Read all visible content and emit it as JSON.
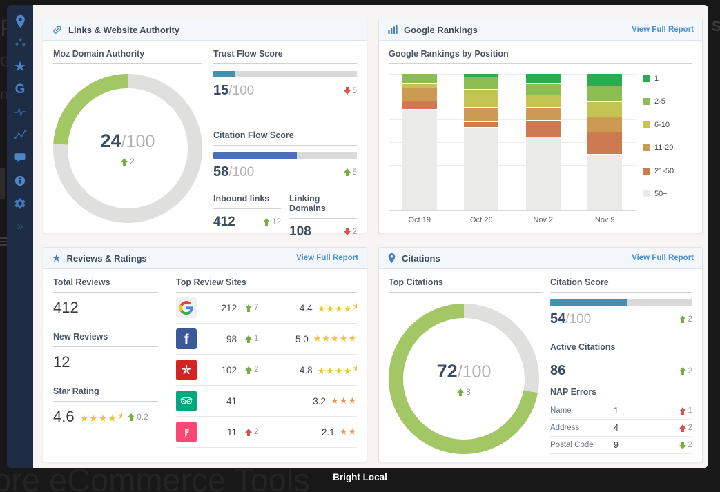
{
  "window": {
    "watermark_text": "ore eCommerce Tools",
    "caption": "Bright Local",
    "edge_fragments": {
      "left_1": "P",
      "left_2": "G",
      "left_3": "m",
      "right_1": "S"
    }
  },
  "sidebar": {
    "icons": [
      "location-pin",
      "pins-cluster",
      "star",
      "google-g",
      "pulse",
      "line-chart",
      "chat-bubble",
      "info",
      "gear",
      "collapse-chevrons"
    ]
  },
  "panels": {
    "links": {
      "title": "Links & Website Authority",
      "moz": {
        "label": "Moz Domain Authority",
        "donut": {
          "pct": 24,
          "fill": "#a3c764",
          "track": "#dfdfdd"
        },
        "score": "24",
        "max": "/100",
        "delta": {
          "dir": "up",
          "value": "2",
          "color": "#76b043"
        }
      },
      "trust": {
        "label": "Trust Flow Score",
        "score": "15",
        "max": "/100",
        "bar": {
          "value": 15,
          "color": "#4193ad",
          "track": "#d9d9d7"
        },
        "delta": {
          "dir": "down",
          "value": "5",
          "color": "#d9534f"
        }
      },
      "citation_flow": {
        "label": "Citation Flow Score",
        "score": "58",
        "max": "/100",
        "bar": {
          "value": 58,
          "color": "#4a70bd",
          "track": "#d9d9d7"
        },
        "delta": {
          "dir": "up",
          "value": "5",
          "color": "#76b043"
        }
      },
      "inbound": {
        "label": "Inbound links",
        "value": "412",
        "delta": {
          "dir": "up",
          "value": "12",
          "color": "#76b043"
        }
      },
      "linking": {
        "label": "Linking Domains",
        "value": "108",
        "delta": {
          "dir": "down",
          "value": "2",
          "color": "#d9534f"
        }
      }
    },
    "rankings": {
      "title": "Google Rankings",
      "link": "View Full Report",
      "subtitle": "Google Rankings by Position",
      "chart_data": {
        "type": "bar-stacked",
        "categories": [
          "Oct 19",
          "Oct 26",
          "Nov 2",
          "Nov 9"
        ],
        "series": [
          {
            "name": "1",
            "color": "#2faa50",
            "values": [
              0,
              2,
              7,
              9
            ]
          },
          {
            "name": "2-5",
            "color": "#8cbd52",
            "values": [
              7,
              9,
              8,
              11
            ]
          },
          {
            "name": "6-10",
            "color": "#c3c452",
            "values": [
              3,
              13,
              9,
              11
            ]
          },
          {
            "name": "11-20",
            "color": "#cc9a52",
            "values": [
              9,
              10,
              9,
              11
            ]
          },
          {
            "name": "21-50",
            "color": "#cd7a50",
            "values": [
              6,
              4,
              12,
              16
            ]
          },
          {
            "name": "50+",
            "color": "#eaeae8",
            "values": [
              75,
              62,
              55,
              42
            ]
          }
        ],
        "ylim": [
          0,
          100
        ],
        "grid": true,
        "legend_position": "right"
      }
    },
    "reviews": {
      "title": "Reviews & Ratings",
      "link": "View Full Report",
      "total": {
        "label": "Total Reviews",
        "value": "412"
      },
      "new": {
        "label": "New Reviews",
        "value": "12"
      },
      "star": {
        "label": "Star Rating",
        "value": "4.6",
        "stars": {
          "display": 4.5,
          "color": "#f2c13c"
        },
        "delta": {
          "dir": "up",
          "value": "0.2",
          "color": "#76b043"
        }
      },
      "sites_label": "Top Review Sites",
      "sites": [
        {
          "name": "Google",
          "count": "212",
          "delta": {
            "dir": "up",
            "value": "7",
            "color": "#76b043"
          },
          "rating": "4.4",
          "stars": {
            "display": 4.5,
            "color": "#f2c13c"
          },
          "brand_color": "#f1f1f1"
        },
        {
          "name": "Facebook",
          "count": "98",
          "delta": {
            "dir": "up",
            "value": "1",
            "color": "#76b043"
          },
          "rating": "5.0",
          "stars": {
            "display": 5,
            "color": "#f2c13c"
          },
          "brand_color": "#3b5998"
        },
        {
          "name": "Yelp",
          "count": "102",
          "delta": {
            "dir": "up",
            "value": "2",
            "color": "#76b043"
          },
          "rating": "4.8",
          "stars": {
            "display": 4.5,
            "color": "#f2c13c"
          },
          "brand_color": "#d32323"
        },
        {
          "name": "TripAdvisor",
          "count": "41",
          "delta": null,
          "rating": "3.2",
          "stars": {
            "display": 3,
            "color": "#ef9450"
          },
          "brand_color": "#00a680"
        },
        {
          "name": "Foursquare",
          "count": "11",
          "delta": {
            "dir": "up",
            "value": "2",
            "color": "#d9534f"
          },
          "rating": "2.1",
          "stars": {
            "display": 2,
            "color": "#ef9450"
          },
          "brand_color": "#f94877"
        }
      ]
    },
    "citations": {
      "title": "Citations",
      "link": "View Full Report",
      "top_label": "Top Citations",
      "donut": {
        "pct": 72,
        "fill": "#a3c764",
        "track": "#dfdfdd"
      },
      "score": "72",
      "max": "/100",
      "delta": {
        "dir": "up",
        "value": "8",
        "color": "#76b043"
      },
      "citation_score": {
        "label": "Citation Score",
        "score": "54",
        "max": "/100",
        "bar": {
          "value": 54,
          "color": "#4193ad",
          "track": "#d9d9d7"
        },
        "delta": {
          "dir": "up",
          "value": "2",
          "color": "#76b043"
        }
      },
      "active": {
        "label": "Active Citations",
        "value": "86",
        "delta": {
          "dir": "up",
          "value": "2",
          "color": "#76b043"
        }
      },
      "nap": {
        "label": "NAP Errors",
        "rows": [
          {
            "label": "Name",
            "value": "1",
            "delta": {
              "dir": "up",
              "value": "1",
              "color": "#d9534f"
            }
          },
          {
            "label": "Address",
            "value": "4",
            "delta": {
              "dir": "up",
              "value": "2",
              "color": "#d9534f"
            }
          },
          {
            "label": "Postal Code",
            "value": "9",
            "delta": {
              "dir": "down",
              "value": "2",
              "color": "#76b043"
            }
          }
        ]
      }
    }
  }
}
